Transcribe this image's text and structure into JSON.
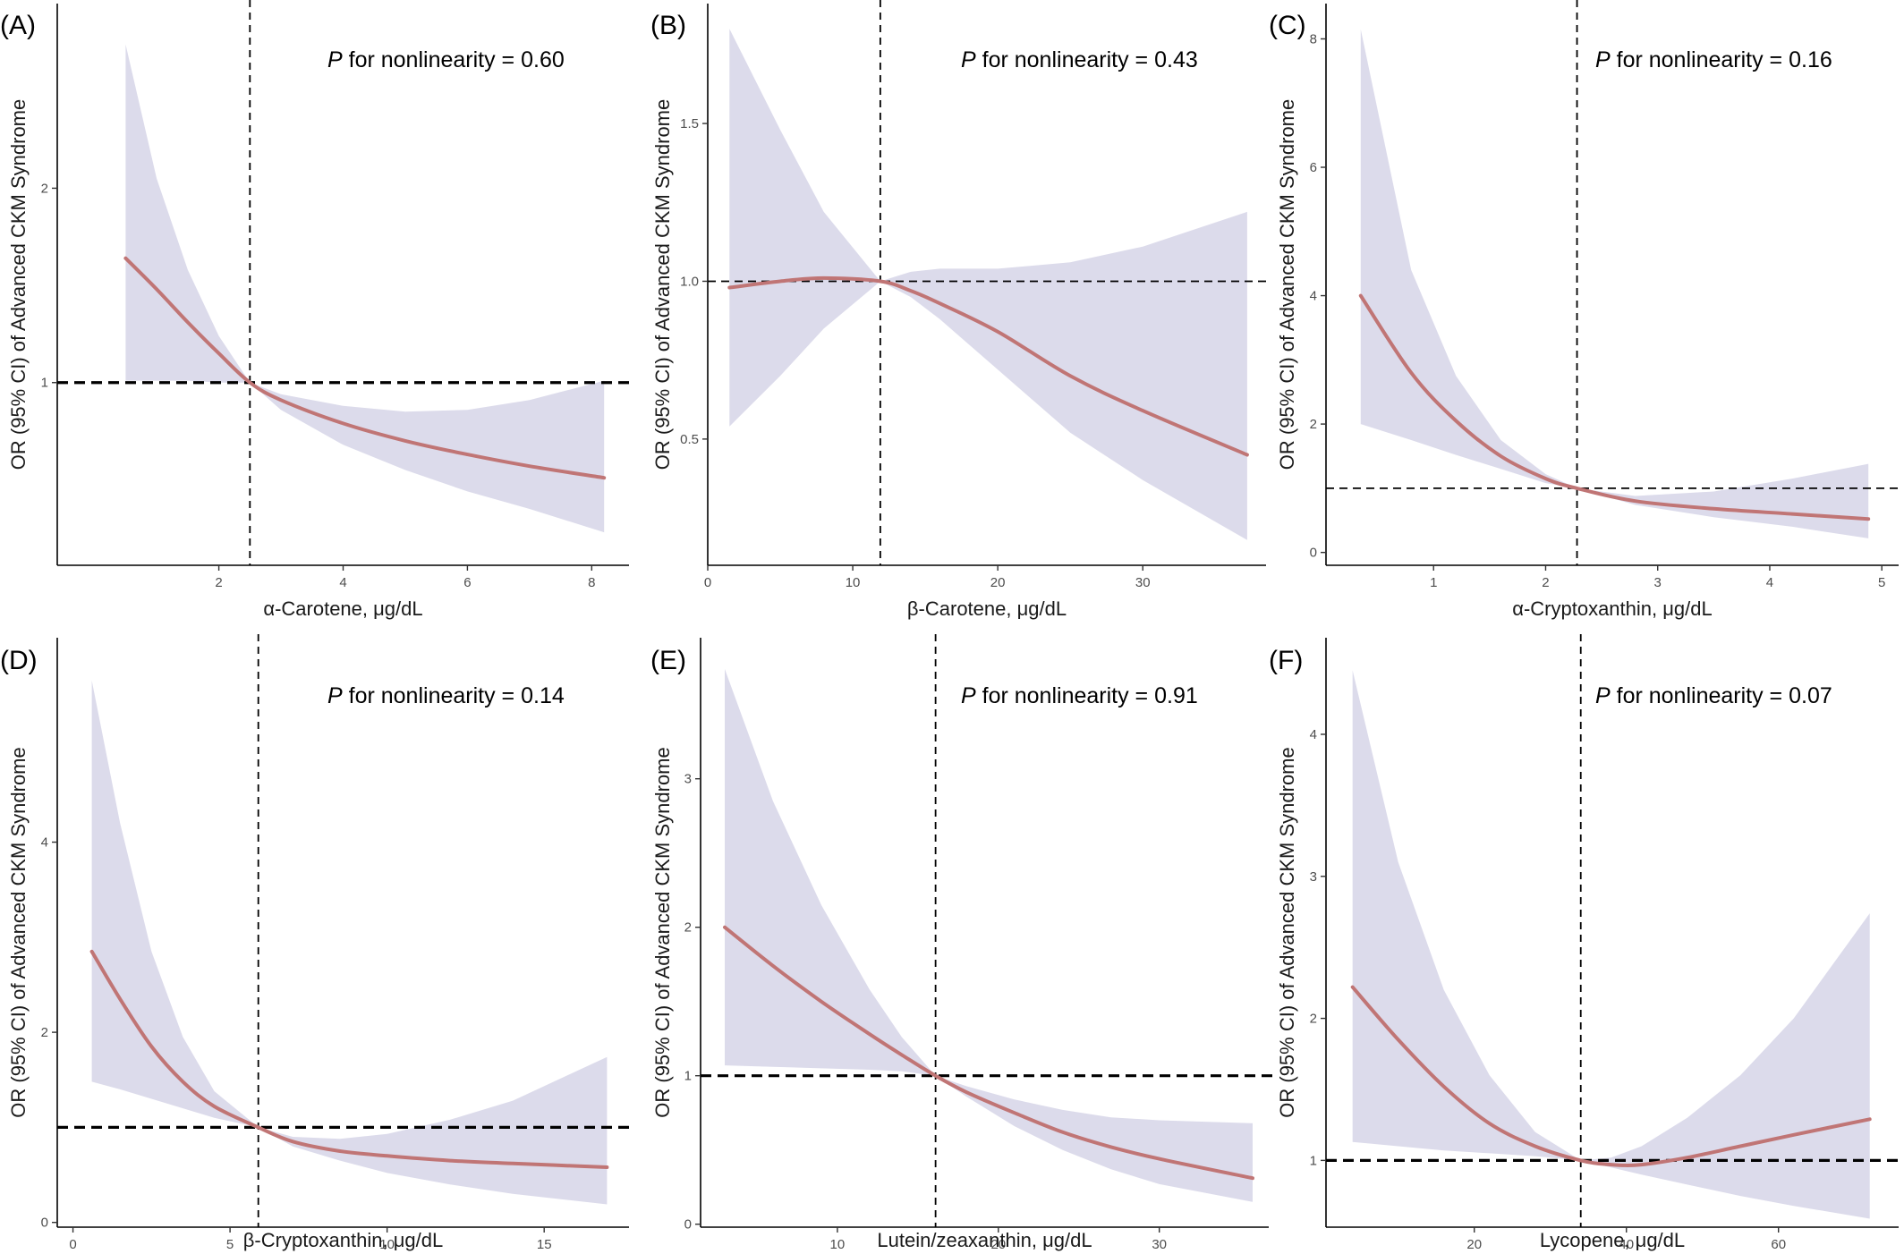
{
  "colors": {
    "band": "#dcdbeb",
    "line": "#c07575",
    "ref": "#000000",
    "axis": "#000000"
  },
  "chart_data": [
    {
      "type": "line",
      "panel": "(A)",
      "annotation": {
        "italic": "P",
        "text": " for nonlinearity = 0.60"
      },
      "xlabel": "α-Carotene, μg/dL",
      "ylabel": "OR (95% CI) of Advanced CKM Syndrome",
      "xlim": [
        -0.6,
        8.6
      ],
      "ylim": [
        0.06,
        2.95
      ],
      "xticks": [
        2,
        4,
        6,
        8
      ],
      "yticks": [
        1,
        2
      ],
      "ref_x": 2.5,
      "ref_y": 1,
      "ref_y_style": "heavy",
      "x": [
        0.5,
        1.0,
        1.5,
        2.0,
        2.5,
        3.0,
        4.0,
        5.0,
        6.0,
        7.0,
        8.2
      ],
      "or": [
        1.64,
        1.48,
        1.31,
        1.15,
        1.0,
        0.91,
        0.79,
        0.7,
        0.63,
        0.57,
        0.51
      ],
      "lower": [
        1.01,
        1.01,
        1.01,
        1.0,
        1.0,
        0.86,
        0.68,
        0.55,
        0.44,
        0.35,
        0.23
      ],
      "upper": [
        2.74,
        2.05,
        1.58,
        1.24,
        1.0,
        0.94,
        0.88,
        0.85,
        0.86,
        0.91,
        1.01
      ]
    },
    {
      "type": "line",
      "panel": "(B)",
      "annotation": {
        "italic": "P",
        "text": " for nonlinearity = 0.43"
      },
      "xlabel": "β-Carotene, μg/dL",
      "ylabel": "OR (95% CI) of Advanced CKM Syndrome",
      "xlim": [
        0,
        38.5
      ],
      "ylim": [
        0.1,
        1.88
      ],
      "xticks": [
        0,
        10,
        20,
        30
      ],
      "yticks": [
        0.5,
        1.0,
        1.5
      ],
      "ytick_labels": [
        "0.5",
        "1.0",
        "1.5"
      ],
      "ref_x": 11.9,
      "ref_y": 1,
      "ref_y_style": "light",
      "x": [
        1.5,
        5,
        8,
        11.9,
        14,
        16,
        20,
        25,
        30,
        37.2
      ],
      "or": [
        0.98,
        1.0,
        1.01,
        1.0,
        0.97,
        0.93,
        0.84,
        0.7,
        0.59,
        0.45
      ],
      "lower": [
        0.54,
        0.7,
        0.85,
        1.0,
        0.95,
        0.88,
        0.72,
        0.52,
        0.37,
        0.18
      ],
      "upper": [
        1.8,
        1.48,
        1.22,
        1.0,
        1.03,
        1.04,
        1.04,
        1.06,
        1.11,
        1.22
      ]
    },
    {
      "type": "line",
      "panel": "(C)",
      "annotation": {
        "italic": "P",
        "text": " for nonlinearity = 0.16"
      },
      "xlabel": "α-Cryptoxanthin, μg/dL",
      "ylabel": "OR (95% CI) of Advanced CKM Syndrome",
      "xlim": [
        0.04,
        5.15
      ],
      "ylim": [
        -0.2,
        8.55
      ],
      "xticks": [
        1,
        2,
        3,
        4,
        5
      ],
      "yticks": [
        0,
        2,
        4,
        6,
        8
      ],
      "ref_x": 2.28,
      "ref_y": 1,
      "ref_y_style": "light",
      "x": [
        0.35,
        0.8,
        1.2,
        1.6,
        2.0,
        2.28,
        2.8,
        3.5,
        4.2,
        4.88
      ],
      "or": [
        4.0,
        2.8,
        2.05,
        1.5,
        1.15,
        1.0,
        0.8,
        0.68,
        0.6,
        0.52
      ],
      "lower": [
        2.0,
        1.75,
        1.52,
        1.3,
        1.08,
        1.0,
        0.74,
        0.55,
        0.4,
        0.22
      ],
      "upper": [
        8.15,
        4.4,
        2.75,
        1.75,
        1.22,
        1.0,
        0.88,
        0.95,
        1.15,
        1.38
      ]
    },
    {
      "type": "line",
      "panel": "(D)",
      "annotation": {
        "italic": "P",
        "text": " for nonlinearity = 0.14"
      },
      "xlabel": "β-Cryptoxanthin, μg/dL",
      "ylabel": "OR (95% CI) of Advanced CKM Syndrome",
      "xlim": [
        -0.5,
        17.7
      ],
      "ylim": [
        -0.05,
        6.15
      ],
      "xticks": [
        0,
        5,
        10,
        15
      ],
      "yticks": [
        0,
        2,
        4
      ],
      "ref_x": 5.9,
      "ref_y": 1,
      "ref_y_style": "heavy",
      "x": [
        0.6,
        1.5,
        2.5,
        3.5,
        4.5,
        5.9,
        7,
        8.5,
        10,
        12,
        14,
        17
      ],
      "or": [
        2.85,
        2.35,
        1.85,
        1.48,
        1.22,
        1.0,
        0.85,
        0.75,
        0.7,
        0.65,
        0.62,
        0.58
      ],
      "lower": [
        1.48,
        1.4,
        1.3,
        1.2,
        1.1,
        1.0,
        0.8,
        0.65,
        0.52,
        0.4,
        0.3,
        0.19
      ],
      "upper": [
        5.7,
        4.2,
        2.85,
        1.95,
        1.38,
        1.0,
        0.9,
        0.88,
        0.93,
        1.08,
        1.28,
        1.74
      ]
    },
    {
      "type": "line",
      "panel": "(E)",
      "annotation": {
        "italic": "P",
        "text": " for nonlinearity = 0.91"
      },
      "xlabel": "Lutein/zeaxanthin, μg/dL",
      "ylabel": "OR (95% CI) of Advanced CKM Syndrome",
      "xlim": [
        1.5,
        36.8
      ],
      "ylim": [
        -0.02,
        3.95
      ],
      "xticks": [
        10,
        20,
        30
      ],
      "yticks": [
        0,
        1,
        2,
        3
      ],
      "ref_x": 16.1,
      "ref_y": 1,
      "ref_y_style": "heavy",
      "x": [
        3,
        6,
        9,
        12,
        14,
        16.1,
        18,
        21,
        24,
        27,
        30,
        35.8
      ],
      "or": [
        2.0,
        1.74,
        1.5,
        1.28,
        1.14,
        1.0,
        0.89,
        0.75,
        0.62,
        0.52,
        0.44,
        0.31
      ],
      "lower": [
        1.07,
        1.06,
        1.05,
        1.04,
        1.03,
        1.0,
        0.86,
        0.66,
        0.5,
        0.37,
        0.27,
        0.15
      ],
      "upper": [
        3.74,
        2.85,
        2.15,
        1.58,
        1.26,
        1.0,
        0.93,
        0.84,
        0.77,
        0.72,
        0.7,
        0.68
      ]
    },
    {
      "type": "line",
      "panel": "(F)",
      "annotation": {
        "italic": "P",
        "text": " for nonlinearity = 0.07"
      },
      "xlabel": "Lycopene, μg/dL",
      "ylabel": "OR (95% CI) of Advanced CKM Syndrome",
      "xlim": [
        0.5,
        75.8
      ],
      "ylim": [
        0.53,
        4.68
      ],
      "xticks": [
        20,
        40,
        60
      ],
      "yticks": [
        1,
        2,
        3,
        4
      ],
      "ref_x": 34,
      "ref_y": 1,
      "ref_y_style": "heavy",
      "x": [
        4,
        10,
        16,
        22,
        28,
        34,
        38,
        42,
        48,
        55,
        62,
        72
      ],
      "or": [
        2.22,
        1.85,
        1.52,
        1.26,
        1.1,
        1.0,
        0.97,
        0.97,
        1.02,
        1.1,
        1.18,
        1.29
      ],
      "lower": [
        1.13,
        1.1,
        1.07,
        1.05,
        1.03,
        1.0,
        0.95,
        0.9,
        0.83,
        0.75,
        0.68,
        0.59
      ],
      "upper": [
        4.45,
        3.1,
        2.2,
        1.6,
        1.2,
        1.0,
        1.02,
        1.1,
        1.3,
        1.6,
        2.0,
        2.74
      ]
    }
  ]
}
